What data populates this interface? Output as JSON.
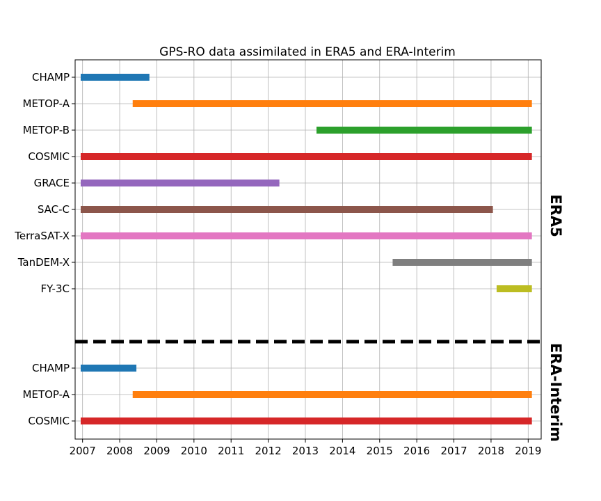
{
  "chart_data": {
    "type": "bar",
    "orientation": "horizontal-timeline",
    "title": "GPS-RO data assimilated in ERA5 and ERA-Interim",
    "xlabel": "",
    "ylabel": "",
    "xlim": [
      2006.8,
      2019.35
    ],
    "grid": true,
    "x_ticks": [
      "2007",
      "2008",
      "2009",
      "2010",
      "2011",
      "2012",
      "2013",
      "2014",
      "2015",
      "2016",
      "2017",
      "2018",
      "2019"
    ],
    "sections": [
      {
        "name": "ERA5",
        "series": [
          {
            "name": "CHAMP",
            "start": 2006.95,
            "end": 2008.8,
            "color": "#1f77b4"
          },
          {
            "name": "METOP-A",
            "start": 2008.35,
            "end": 2019.1,
            "color": "#ff7f0e"
          },
          {
            "name": "METOP-B",
            "start": 2013.3,
            "end": 2019.1,
            "color": "#2ca02c"
          },
          {
            "name": "COSMIC",
            "start": 2006.95,
            "end": 2019.1,
            "color": "#d62728"
          },
          {
            "name": "GRACE",
            "start": 2006.95,
            "end": 2012.3,
            "color": "#9467bd"
          },
          {
            "name": "SAC-C",
            "start": 2006.95,
            "end": 2018.05,
            "color": "#8c564b"
          },
          {
            "name": "TerraSAT-X",
            "start": 2006.95,
            "end": 2019.1,
            "color": "#e377c2"
          },
          {
            "name": "TanDEM-X",
            "start": 2015.35,
            "end": 2019.1,
            "color": "#7f7f7f"
          },
          {
            "name": "FY-3C",
            "start": 2018.15,
            "end": 2019.1,
            "color": "#bcbd22"
          }
        ]
      },
      {
        "name": "ERA-Interim",
        "series": [
          {
            "name": "CHAMP",
            "start": 2006.95,
            "end": 2008.45,
            "color": "#1f77b4"
          },
          {
            "name": "METOP-A",
            "start": 2008.35,
            "end": 2019.1,
            "color": "#ff7f0e"
          },
          {
            "name": "COSMIC",
            "start": 2006.95,
            "end": 2019.1,
            "color": "#d62728"
          }
        ]
      }
    ]
  }
}
